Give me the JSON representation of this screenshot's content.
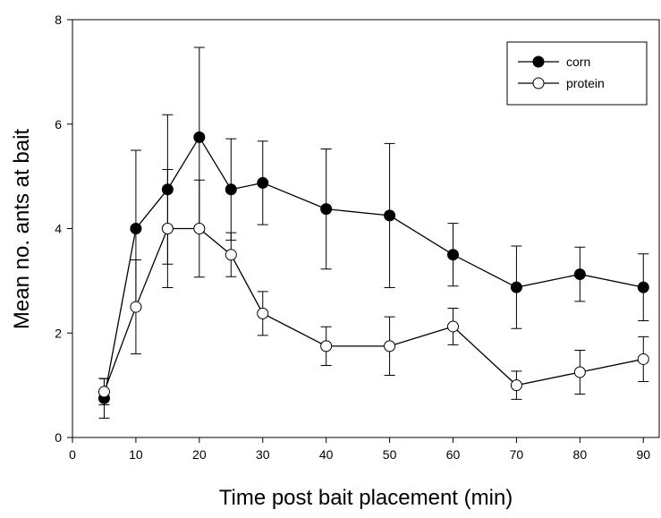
{
  "chart_data": {
    "type": "line",
    "xlabel": "Time post bait placement (min)",
    "ylabel": "Mean no. ants at bait",
    "x": [
      5,
      10,
      15,
      20,
      25,
      30,
      40,
      50,
      60,
      70,
      80,
      90
    ],
    "series": [
      {
        "name": "corn",
        "color": "#000000",
        "marker_fill": "#000000",
        "values": [
          0.75,
          4,
          4.75,
          5.75,
          4.75,
          4.875,
          4.375,
          4.25,
          3.5,
          2.875,
          3.125,
          2.875
        ],
        "errors": [
          0.38,
          1.5,
          1.43,
          1.72,
          0.97,
          0.8,
          1.15,
          1.38,
          0.6,
          0.79,
          0.52,
          0.64
        ]
      },
      {
        "name": "protein",
        "color": "#000000",
        "marker_fill": "#ffffff",
        "values": [
          0.875,
          2.5,
          4,
          4,
          3.5,
          2.375,
          1.75,
          1.75,
          2.125,
          1.0,
          1.25,
          1.5
        ],
        "errors": [
          0.25,
          0.9,
          1.13,
          0.93,
          0.42,
          0.42,
          0.37,
          0.56,
          0.35,
          0.27,
          0.42,
          0.43
        ]
      }
    ],
    "xlim": [
      0,
      92.5
    ],
    "xticks": [
      0,
      10,
      20,
      30,
      40,
      50,
      60,
      70,
      80,
      90
    ],
    "ylim": [
      0,
      8
    ],
    "yticks": [
      0,
      2,
      4,
      6,
      8
    ],
    "legend": "upper right",
    "grid": false
  }
}
